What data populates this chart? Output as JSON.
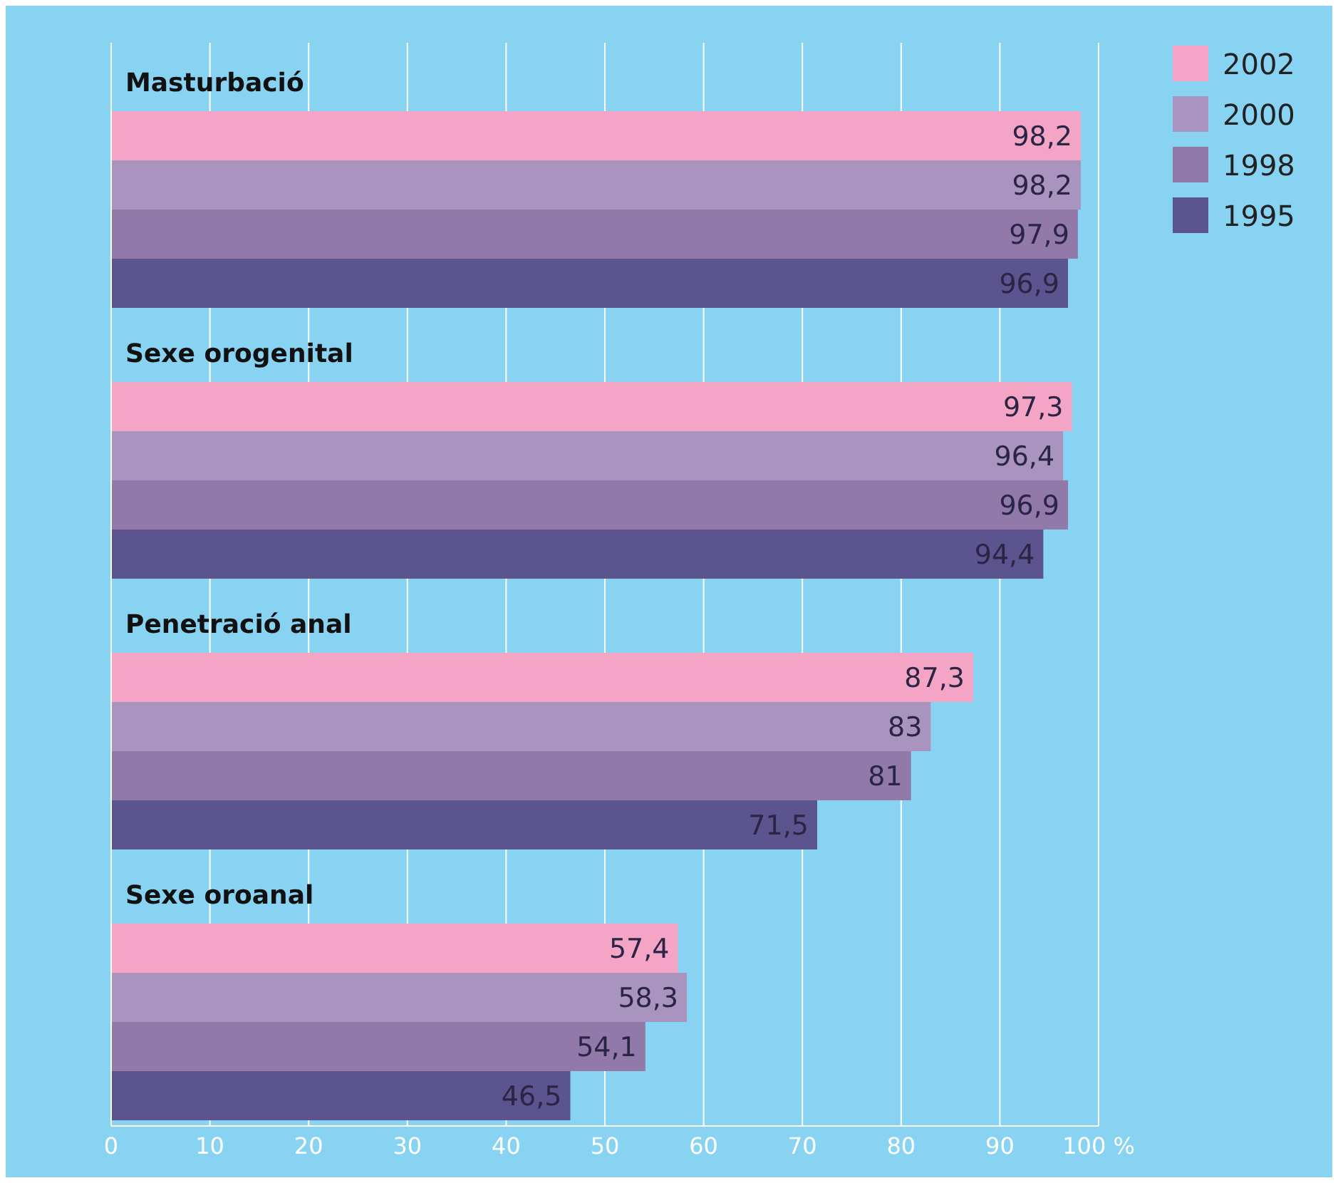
{
  "chart_data": {
    "type": "bar",
    "orientation": "horizontal",
    "categories": [
      "Masturbació",
      "Sexe orogenital",
      "Penetració anal",
      "Sexe oroanal"
    ],
    "series": [
      {
        "name": "2002",
        "color": "#f4a5c5",
        "values": [
          98.2,
          97.3,
          87.3,
          57.4
        ],
        "value_labels": [
          "98,2",
          "97,3",
          "87,3",
          "57,4"
        ]
      },
      {
        "name": "2000",
        "color": "#a993bf",
        "values": [
          98.2,
          96.4,
          83,
          58.3
        ],
        "value_labels": [
          "98,2",
          "96,4",
          "83",
          "58,3"
        ]
      },
      {
        "name": "1998",
        "color": "#9179aa",
        "values": [
          97.9,
          96.9,
          81,
          54.1
        ],
        "value_labels": [
          "97,9",
          "96,9",
          "81",
          "54,1"
        ]
      },
      {
        "name": "1995",
        "color": "#5b548f",
        "values": [
          96.9,
          94.4,
          71.5,
          46.5
        ],
        "value_labels": [
          "96,9",
          "94,4",
          "71,5",
          "46,5"
        ]
      }
    ],
    "xlim": [
      0,
      100
    ],
    "xticks": [
      0,
      10,
      20,
      30,
      40,
      50,
      60,
      70,
      80,
      90,
      {
        "value": 100,
        "label": "100 %"
      }
    ],
    "grid": "x",
    "legend": "top right"
  }
}
